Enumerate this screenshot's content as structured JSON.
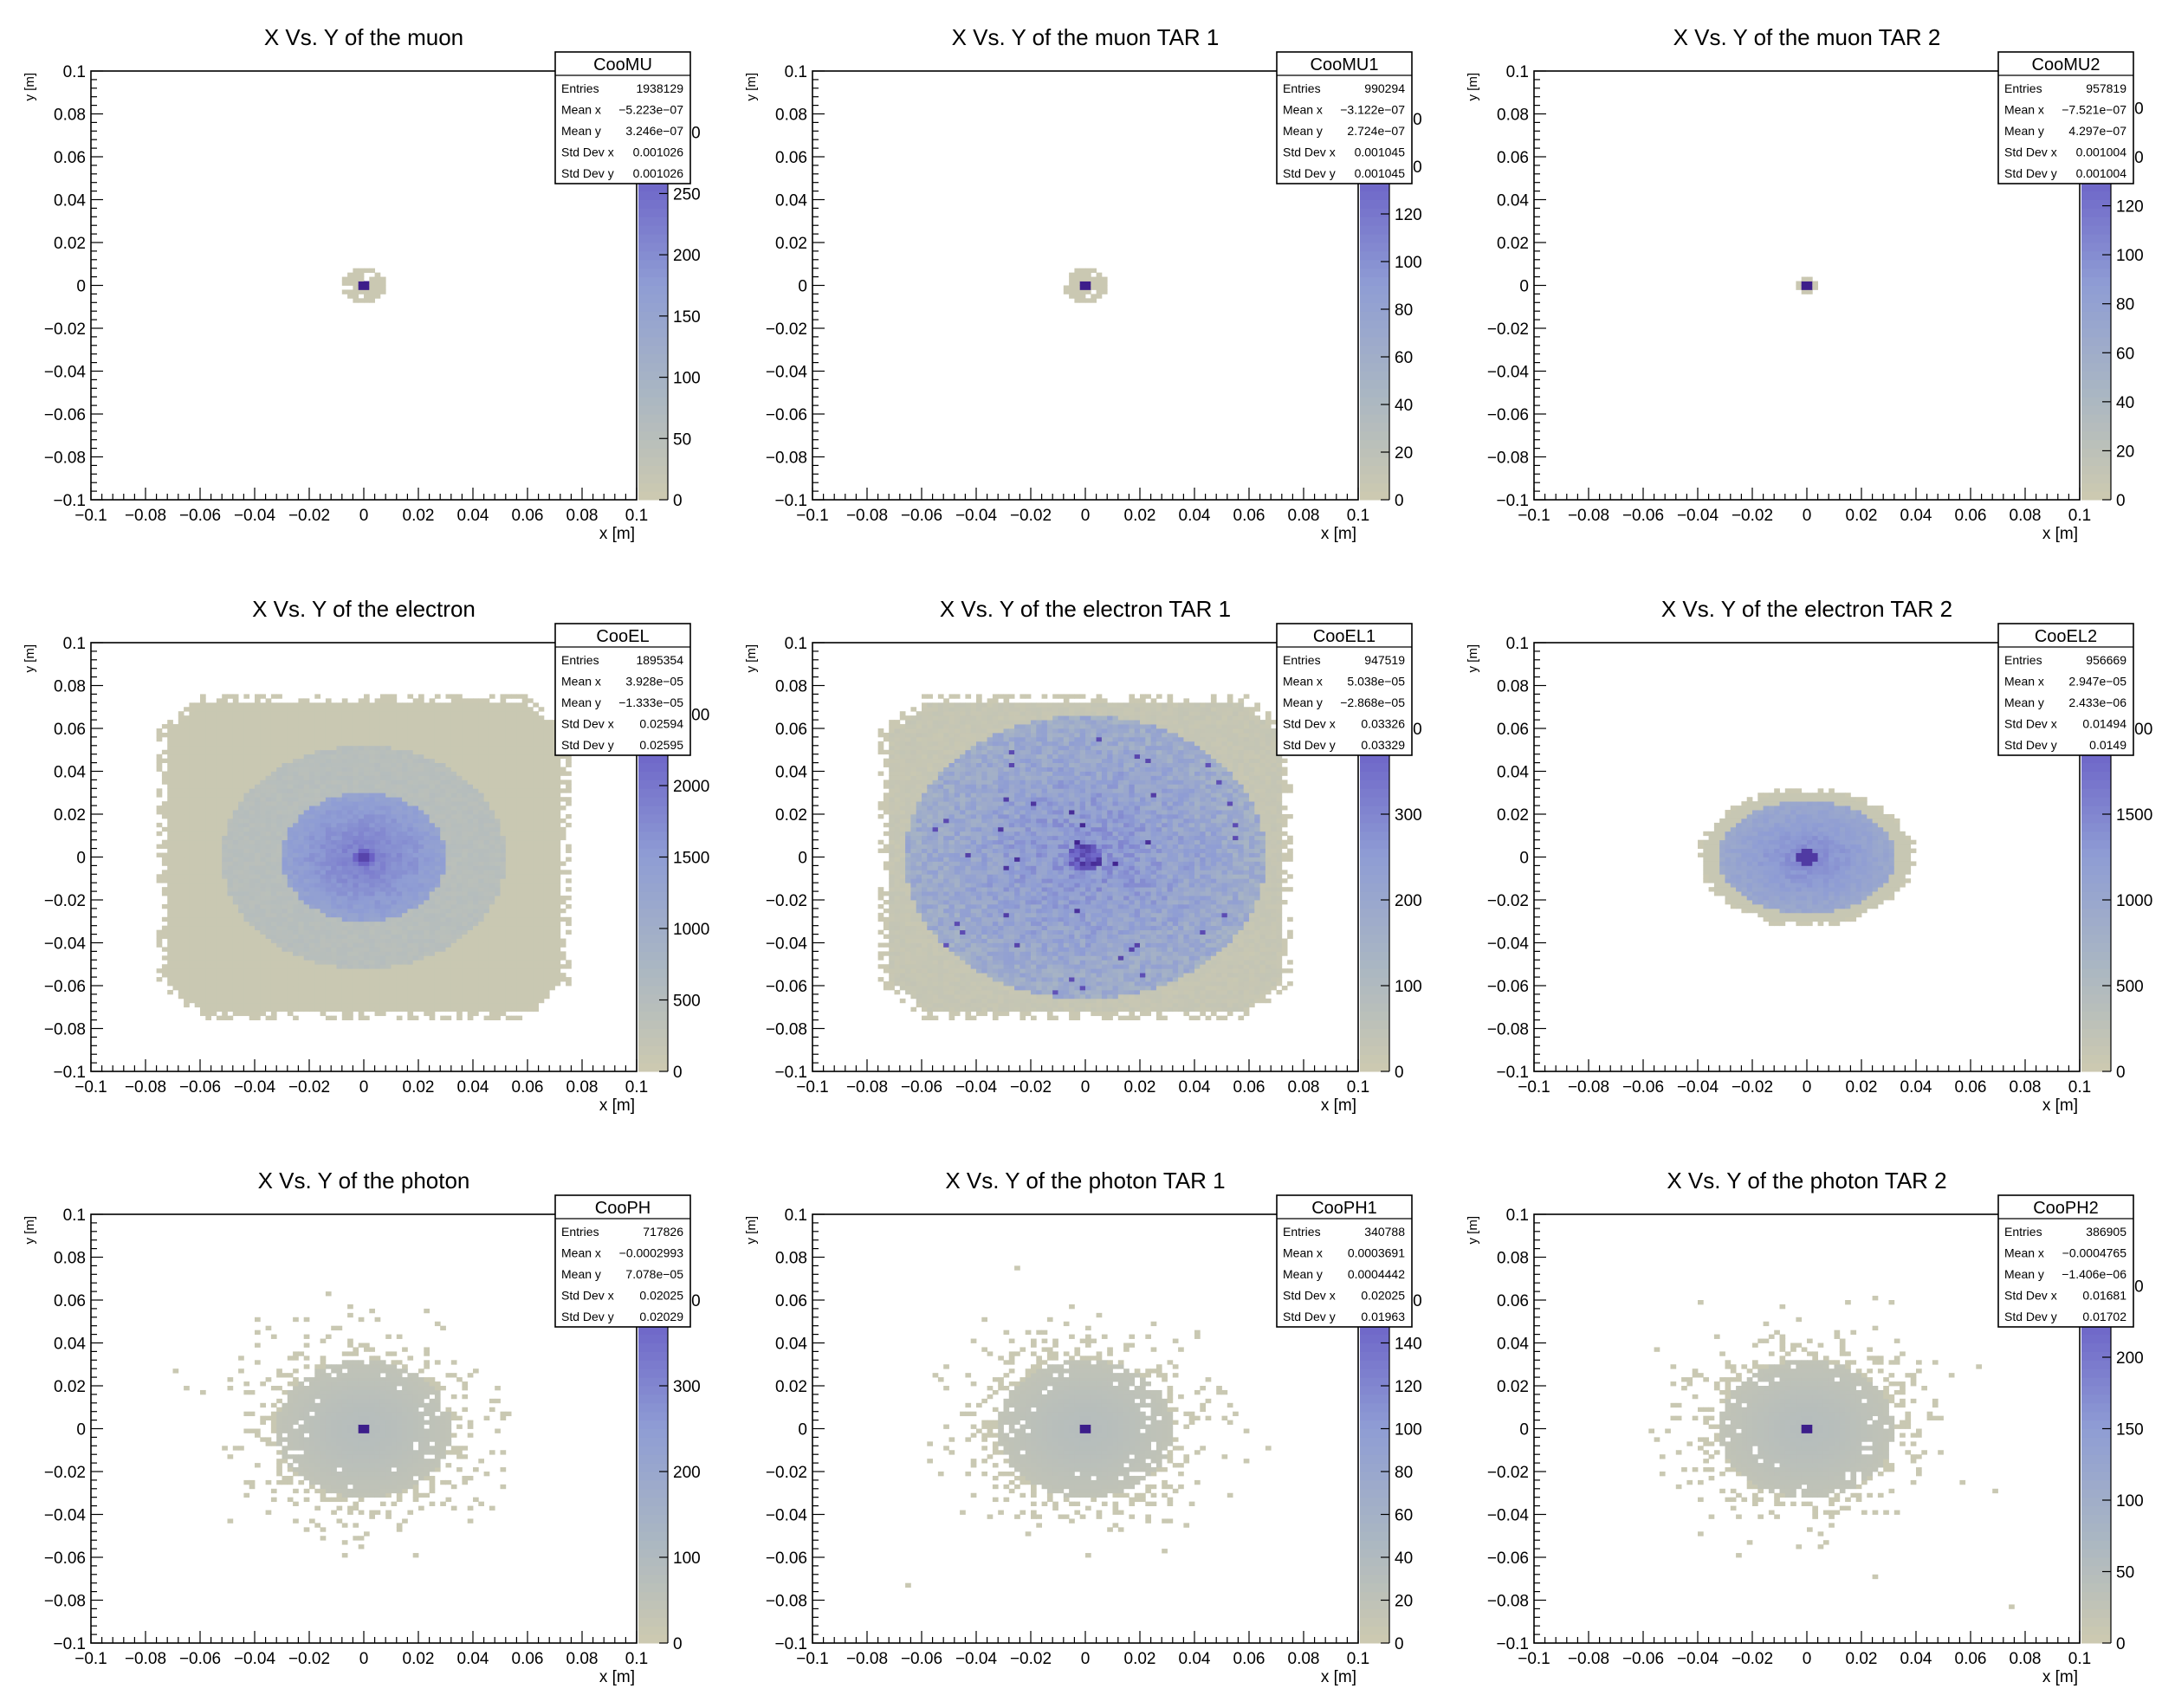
{
  "chart_data": [
    {
      "type": "heatmap",
      "title": "X  Vs. Y of the muon",
      "xlabel": "x [m]",
      "ylabel": "y [m]",
      "xlim": [
        -0.1,
        0.1
      ],
      "ylim": [
        -0.1,
        0.1
      ],
      "x_ticks": [
        "−0.1",
        "−0.08",
        "−0.06",
        "−0.04",
        "−0.02",
        "0",
        "0.02",
        "0.04",
        "0.06",
        "0.08",
        "0.1"
      ],
      "y_ticks": [
        "0.1",
        "0.08",
        "0.06",
        "0.04",
        "0.02",
        "0",
        "−0.02",
        "−0.04",
        "−0.06",
        "−0.08",
        "−0.1"
      ],
      "colorbar": {
        "max": 350,
        "ticks": [
          "0",
          "50",
          "100",
          "150",
          "200",
          "250",
          "300"
        ],
        "exponent": "3"
      },
      "stats": {
        "name": "CooMU",
        "rows": [
          [
            "Entries",
            "1938129"
          ],
          [
            "Mean x",
            "−5.223e−07"
          ],
          [
            "Mean y",
            "3.246e−07"
          ],
          [
            "Std Dev x",
            "0.001026"
          ],
          [
            "Std Dev y",
            "0.001026"
          ]
        ]
      },
      "distribution": {
        "shape": "muon",
        "sigma": 0.001026
      }
    },
    {
      "type": "heatmap",
      "title": "X  Vs. Y of the muon TAR 1",
      "xlabel": "x [m]",
      "ylabel": "y [m]",
      "xlim": [
        -0.1,
        0.1
      ],
      "ylim": [
        -0.1,
        0.1
      ],
      "x_ticks": [
        "−0.1",
        "−0.08",
        "−0.06",
        "−0.04",
        "−0.02",
        "0",
        "0.02",
        "0.04",
        "0.06",
        "0.08",
        "0.1"
      ],
      "y_ticks": [
        "0.1",
        "0.08",
        "0.06",
        "0.04",
        "0.02",
        "0",
        "−0.02",
        "−0.04",
        "−0.06",
        "−0.08",
        "−0.1"
      ],
      "colorbar": {
        "max": 180,
        "ticks": [
          "0",
          "20",
          "40",
          "60",
          "80",
          "100",
          "120",
          "140",
          "160"
        ],
        "exponent": "3"
      },
      "stats": {
        "name": "CooMU1",
        "rows": [
          [
            "Entries",
            "990294"
          ],
          [
            "Mean x",
            "−3.122e−07"
          ],
          [
            "Mean y",
            "2.724e−07"
          ],
          [
            "Std Dev x",
            "0.001045"
          ],
          [
            "Std Dev y",
            "0.001045"
          ]
        ]
      },
      "distribution": {
        "shape": "muon",
        "sigma": 0.001045
      }
    },
    {
      "type": "heatmap",
      "title": "X  Vs. Y of the muon TAR 2",
      "xlabel": "x [m]",
      "ylabel": "y [m]",
      "xlim": [
        -0.1,
        0.1
      ],
      "ylim": [
        -0.1,
        0.1
      ],
      "x_ticks": [
        "−0.1",
        "−0.08",
        "−0.06",
        "−0.04",
        "−0.02",
        "0",
        "0.02",
        "0.04",
        "0.06",
        "0.08",
        "0.1"
      ],
      "y_ticks": [
        "0.1",
        "0.08",
        "0.06",
        "0.04",
        "0.02",
        "0",
        "−0.02",
        "−0.04",
        "−0.06",
        "−0.08",
        "−0.1"
      ],
      "colorbar": {
        "max": 175,
        "ticks": [
          "0",
          "20",
          "40",
          "60",
          "80",
          "100",
          "120",
          "140",
          "160"
        ],
        "exponent": "3"
      },
      "stats": {
        "name": "CooMU2",
        "rows": [
          [
            "Entries",
            "957819"
          ],
          [
            "Mean x",
            "−7.521e−07"
          ],
          [
            "Mean y",
            "4.297e−07"
          ],
          [
            "Std Dev x",
            "0.001004"
          ],
          [
            "Std Dev y",
            "0.001004"
          ]
        ]
      },
      "distribution": {
        "shape": "muon2",
        "sigma": 0.001004
      }
    },
    {
      "type": "heatmap",
      "title": "X  Vs. Y of the electron",
      "xlabel": "x [m]",
      "ylabel": "y [m]",
      "xlim": [
        -0.1,
        0.1
      ],
      "ylim": [
        -0.1,
        0.1
      ],
      "x_ticks": [
        "−0.1",
        "−0.08",
        "−0.06",
        "−0.04",
        "−0.02",
        "0",
        "0.02",
        "0.04",
        "0.06",
        "0.08",
        "0.1"
      ],
      "y_ticks": [
        "0.1",
        "0.08",
        "0.06",
        "0.04",
        "0.02",
        "0",
        "−0.02",
        "−0.04",
        "−0.06",
        "−0.08",
        "−0.1"
      ],
      "colorbar": {
        "max": 3000,
        "ticks": [
          "0",
          "500",
          "1000",
          "1500",
          "2000",
          "2500"
        ]
      },
      "stats": {
        "name": "CooEL",
        "rows": [
          [
            "Entries",
            "1895354"
          ],
          [
            "Mean x",
            "3.928e−05"
          ],
          [
            "Mean y",
            "−1.333e−05"
          ],
          [
            "Std Dev x",
            "0.02594"
          ],
          [
            "Std Dev y",
            "0.02595"
          ]
        ]
      },
      "distribution": {
        "shape": "electron",
        "sigma": 0.02594
      }
    },
    {
      "type": "heatmap",
      "title": "X  Vs. Y of the electron TAR 1",
      "xlabel": "x [m]",
      "ylabel": "y [m]",
      "xlim": [
        -0.1,
        0.1
      ],
      "ylim": [
        -0.1,
        0.1
      ],
      "x_ticks": [
        "−0.1",
        "−0.08",
        "−0.06",
        "−0.04",
        "−0.02",
        "0",
        "0.02",
        "0.04",
        "0.06",
        "0.08",
        "0.1"
      ],
      "y_ticks": [
        "0.1",
        "0.08",
        "0.06",
        "0.04",
        "0.02",
        "0",
        "−0.02",
        "−0.04",
        "−0.06",
        "−0.08",
        "−0.1"
      ],
      "colorbar": {
        "max": 500,
        "ticks": [
          "0",
          "100",
          "200",
          "300",
          "400"
        ]
      },
      "stats": {
        "name": "CooEL1",
        "rows": [
          [
            "Entries",
            "947519"
          ],
          [
            "Mean x",
            "5.038e−05"
          ],
          [
            "Mean y",
            "−2.868e−05"
          ],
          [
            "Std Dev x",
            "0.03326"
          ],
          [
            "Std Dev y",
            "0.03329"
          ]
        ]
      },
      "distribution": {
        "shape": "electron1",
        "sigma": 0.03326
      }
    },
    {
      "type": "heatmap",
      "title": "X  Vs. Y of the electron TAR 2",
      "xlabel": "x [m]",
      "ylabel": "y [m]",
      "xlim": [
        -0.1,
        0.1
      ],
      "ylim": [
        -0.1,
        0.1
      ],
      "x_ticks": [
        "−0.1",
        "−0.08",
        "−0.06",
        "−0.04",
        "−0.02",
        "0",
        "0.02",
        "0.04",
        "0.06",
        "0.08",
        "0.1"
      ],
      "y_ticks": [
        "0.1",
        "0.08",
        "0.06",
        "0.04",
        "0.02",
        "0",
        "−0.02",
        "−0.04",
        "−0.06",
        "−0.08",
        "−0.1"
      ],
      "colorbar": {
        "max": 2500,
        "ticks": [
          "0",
          "500",
          "1000",
          "1500",
          "2000"
        ]
      },
      "stats": {
        "name": "CooEL2",
        "rows": [
          [
            "Entries",
            "956669"
          ],
          [
            "Mean x",
            "2.947e−05"
          ],
          [
            "Mean y",
            "2.433e−06"
          ],
          [
            "Std Dev x",
            "0.01494"
          ],
          [
            "Std Dev y",
            "0.0149"
          ]
        ]
      },
      "distribution": {
        "shape": "electron2",
        "sigma": 0.01494
      }
    },
    {
      "type": "heatmap",
      "title": "X  Vs. Y of the photon",
      "xlabel": "x [m]",
      "ylabel": "y [m]",
      "xlim": [
        -0.1,
        0.1
      ],
      "ylim": [
        -0.1,
        0.1
      ],
      "x_ticks": [
        "−0.1",
        "−0.08",
        "−0.06",
        "−0.04",
        "−0.02",
        "0",
        "0.02",
        "0.04",
        "0.06",
        "0.08",
        "0.1"
      ],
      "y_ticks": [
        "0.1",
        "0.08",
        "0.06",
        "0.04",
        "0.02",
        "0",
        "−0.02",
        "−0.04",
        "−0.06",
        "−0.08",
        "−0.1"
      ],
      "colorbar": {
        "max": 500,
        "ticks": [
          "0",
          "100",
          "200",
          "300",
          "400"
        ]
      },
      "stats": {
        "name": "CooPH",
        "rows": [
          [
            "Entries",
            "717826"
          ],
          [
            "Mean x",
            "−0.0002993"
          ],
          [
            "Mean y",
            "7.078e−05"
          ],
          [
            "Std Dev x",
            "0.02025"
          ],
          [
            "Std Dev y",
            "0.02029"
          ]
        ]
      },
      "distribution": {
        "shape": "photon",
        "sigma": 0.02025
      }
    },
    {
      "type": "heatmap",
      "title": "X  Vs. Y of the photon TAR 1",
      "xlabel": "x [m]",
      "ylabel": "y [m]",
      "xlim": [
        -0.1,
        0.1
      ],
      "ylim": [
        -0.1,
        0.1
      ],
      "x_ticks": [
        "−0.1",
        "−0.08",
        "−0.06",
        "−0.04",
        "−0.02",
        "0",
        "0.02",
        "0.04",
        "0.06",
        "0.08",
        "0.1"
      ],
      "y_ticks": [
        "0.1",
        "0.08",
        "0.06",
        "0.04",
        "0.02",
        "0",
        "−0.02",
        "−0.04",
        "−0.06",
        "−0.08",
        "−0.1"
      ],
      "colorbar": {
        "max": 200,
        "ticks": [
          "0",
          "20",
          "40",
          "60",
          "80",
          "100",
          "120",
          "140",
          "160"
        ]
      },
      "stats": {
        "name": "CooPH1",
        "rows": [
          [
            "Entries",
            "340788"
          ],
          [
            "Mean x",
            "0.0003691"
          ],
          [
            "Mean y",
            "0.0004442"
          ],
          [
            "Std Dev x",
            "0.02025"
          ],
          [
            "Std Dev y",
            "0.01963"
          ]
        ]
      },
      "distribution": {
        "shape": "photon",
        "sigma": 0.02
      }
    },
    {
      "type": "heatmap",
      "title": "X  Vs. Y of the photon TAR 2",
      "xlabel": "x [m]",
      "ylabel": "y [m]",
      "xlim": [
        -0.1,
        0.1
      ],
      "ylim": [
        -0.1,
        0.1
      ],
      "x_ticks": [
        "−0.1",
        "−0.08",
        "−0.06",
        "−0.04",
        "−0.02",
        "0",
        "0.02",
        "0.04",
        "0.06",
        "0.08",
        "0.1"
      ],
      "y_ticks": [
        "0.1",
        "0.08",
        "0.06",
        "0.04",
        "0.02",
        "0",
        "−0.02",
        "−0.04",
        "−0.06",
        "−0.08",
        "−0.1"
      ],
      "colorbar": {
        "max": 300,
        "ticks": [
          "0",
          "50",
          "100",
          "150",
          "200",
          "250"
        ]
      },
      "stats": {
        "name": "CooPH2",
        "rows": [
          [
            "Entries",
            "386905"
          ],
          [
            "Mean x",
            "−0.0004765"
          ],
          [
            "Mean y",
            "−1.406e−06"
          ],
          [
            "Std Dev x",
            "0.01681"
          ],
          [
            "Std Dev y",
            "0.01702"
          ]
        ]
      },
      "distribution": {
        "shape": "photon",
        "sigma": 0.017
      }
    }
  ],
  "colors": {
    "palette": [
      "#cdcab0",
      "#a9b6c3",
      "#8f9dd4",
      "#6d64c8",
      "#3d1e8a"
    ],
    "frame": "#000000",
    "background": "#ffffff"
  }
}
